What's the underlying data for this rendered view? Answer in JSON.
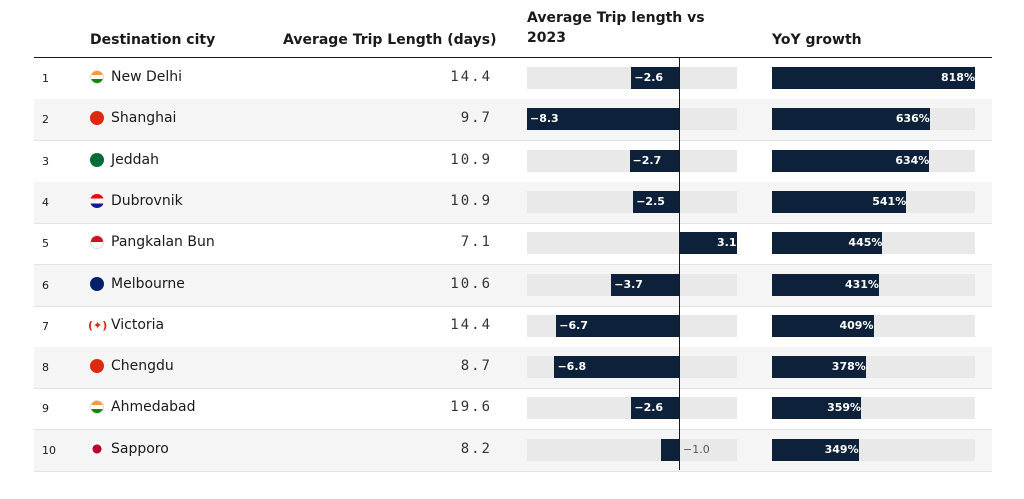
{
  "headers": {
    "city": "Destination city",
    "avg": "Average Trip Length (days)",
    "vs": "Average Trip length vs 2023",
    "yoy": "YoY growth"
  },
  "chart_data": {
    "type": "table",
    "columns": [
      "Destination city",
      "Average Trip Length (days)",
      "Average Trip length vs 2023",
      "YoY growth"
    ],
    "vs_range": [
      -8.3,
      3.1
    ],
    "yoy_range": [
      0,
      818
    ],
    "rows": [
      {
        "rank": "1",
        "city": "New Delhi",
        "flag": "india",
        "avg": "14.4",
        "vs": -2.6,
        "vs_label": "−2.6",
        "yoy": 818,
        "yoy_label": "818%"
      },
      {
        "rank": "2",
        "city": "Shanghai",
        "flag": "china",
        "avg": "9.7",
        "vs": -8.3,
        "vs_label": "−8.3",
        "yoy": 636,
        "yoy_label": "636%"
      },
      {
        "rank": "3",
        "city": "Jeddah",
        "flag": "saudi",
        "avg": "10.9",
        "vs": -2.7,
        "vs_label": "−2.7",
        "yoy": 634,
        "yoy_label": "634%"
      },
      {
        "rank": "4",
        "city": "Dubrovnik",
        "flag": "croatia",
        "avg": "10.9",
        "vs": -2.5,
        "vs_label": "−2.5",
        "yoy": 541,
        "yoy_label": "541%"
      },
      {
        "rank": "5",
        "city": "Pangkalan Bun",
        "flag": "indonesia",
        "avg": "7.1",
        "vs": 3.1,
        "vs_label": "3.1",
        "yoy": 445,
        "yoy_label": "445%"
      },
      {
        "rank": "6",
        "city": "Melbourne",
        "flag": "australia",
        "avg": "10.6",
        "vs": -3.7,
        "vs_label": "−3.7",
        "yoy": 431,
        "yoy_label": "431%"
      },
      {
        "rank": "7",
        "city": "Victoria",
        "flag": "canada",
        "avg": "14.4",
        "vs": -6.7,
        "vs_label": "−6.7",
        "yoy": 409,
        "yoy_label": "409%"
      },
      {
        "rank": "8",
        "city": "Chengdu",
        "flag": "china",
        "avg": "8.7",
        "vs": -6.8,
        "vs_label": "−6.8",
        "yoy": 378,
        "yoy_label": "378%"
      },
      {
        "rank": "9",
        "city": "Ahmedabad",
        "flag": "india",
        "avg": "19.6",
        "vs": -2.6,
        "vs_label": "−2.6",
        "yoy": 359,
        "yoy_label": "359%"
      },
      {
        "rank": "10",
        "city": "Sapporo",
        "flag": "japan",
        "avg": "8.2",
        "vs": -1.0,
        "vs_label": "−1.0",
        "yoy": 349,
        "yoy_label": "349%"
      }
    ]
  },
  "colors": {
    "bar": "#0d213b",
    "track": "#e9e9e9",
    "row_alt": "#f5f5f5"
  }
}
